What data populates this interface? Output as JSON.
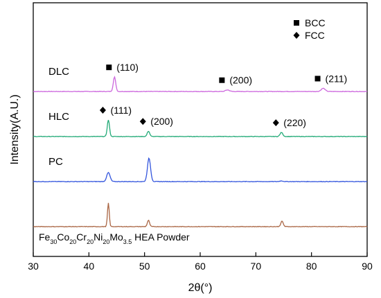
{
  "chart_data": {
    "type": "line",
    "xlabel": "2θ(°)",
    "ylabel": "Intensity(A.U.)",
    "xlim": [
      30,
      90
    ],
    "x_ticks": [
      30,
      40,
      50,
      60,
      70,
      80,
      90
    ],
    "legend": [
      {
        "marker": "square",
        "label": "BCC"
      },
      {
        "marker": "diamond",
        "label": "FCC"
      }
    ],
    "series": [
      {
        "name": "DLC",
        "color": "#cc66dd",
        "baseline": 3.0,
        "peaks": [
          {
            "x": 44.6,
            "height": 0.32,
            "width": 0.22
          },
          {
            "x": 64.9,
            "height": 0.035,
            "width": 0.35
          },
          {
            "x": 82.1,
            "height": 0.07,
            "width": 0.35
          }
        ],
        "annotations": [
          {
            "x": 44.6,
            "phase": "square",
            "hkl": "(110)"
          },
          {
            "x": 64.9,
            "phase": "square",
            "hkl": "(200)"
          },
          {
            "x": 82.1,
            "phase": "square",
            "hkl": "(211)"
          }
        ]
      },
      {
        "name": "HLC",
        "color": "#22aa77",
        "baseline": 2.0,
        "peaks": [
          {
            "x": 43.5,
            "height": 0.37,
            "width": 0.2
          },
          {
            "x": 50.7,
            "height": 0.12,
            "width": 0.22
          },
          {
            "x": 74.6,
            "height": 0.09,
            "width": 0.25
          }
        ],
        "annotations": [
          {
            "x": 43.5,
            "phase": "diamond",
            "hkl": "(111)"
          },
          {
            "x": 50.7,
            "phase": "diamond",
            "hkl": "(200)"
          },
          {
            "x": 74.6,
            "phase": "diamond",
            "hkl": "(220)"
          }
        ]
      },
      {
        "name": "PC",
        "color": "#3355dd",
        "baseline": 1.0,
        "peaks": [
          {
            "x": 43.5,
            "height": 0.2,
            "width": 0.3
          },
          {
            "x": 50.8,
            "height": 0.52,
            "width": 0.28
          },
          {
            "x": 74.6,
            "height": 0.015,
            "width": 0.3
          }
        ],
        "annotations": []
      },
      {
        "name": "Fe30Co20Cr20Ni20Mo3.5 HEA Powder",
        "color": "#aa6644",
        "baseline": 0.0,
        "peaks": [
          {
            "x": 43.5,
            "height": 0.52,
            "width": 0.16
          },
          {
            "x": 50.7,
            "height": 0.14,
            "width": 0.2
          },
          {
            "x": 74.7,
            "height": 0.12,
            "width": 0.22
          }
        ],
        "annotations": []
      }
    ],
    "powder_label": {
      "parts": [
        {
          "text": "Fe",
          "sub": "30"
        },
        {
          "text": "Co",
          "sub": "20"
        },
        {
          "text": "Cr",
          "sub": "20"
        },
        {
          "text": "Ni",
          "sub": "20"
        },
        {
          "text": "Mo",
          "sub": "3.5"
        },
        {
          "text": " HEA Powder",
          "sub": ""
        }
      ]
    },
    "grid": false
  }
}
